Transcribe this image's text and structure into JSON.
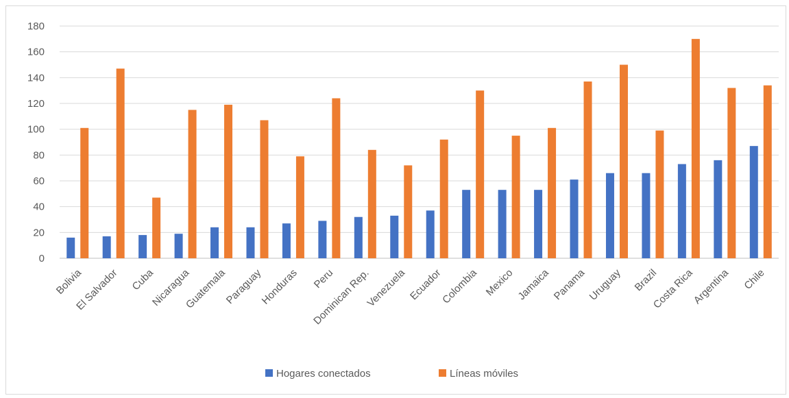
{
  "chart_data": {
    "type": "bar",
    "title": "",
    "xlabel": "",
    "ylabel": "",
    "ylim": [
      0,
      180
    ],
    "yticks": [
      0,
      20,
      40,
      60,
      80,
      100,
      120,
      140,
      160,
      180
    ],
    "grid": true,
    "legend_position": "bottom",
    "categories": [
      "Bolivia",
      "El Salvador",
      "Cuba",
      "Nicaragua",
      "Guatemala",
      "Paraguay",
      "Honduras",
      "Peru",
      "Dominican Rep.",
      "Venezuela",
      "Ecuador",
      "Colombia",
      "Mexico",
      "Jamaica",
      "Panama",
      "Uruguay",
      "Brazil",
      "Costa Rica",
      "Argentina",
      "Chile"
    ],
    "series": [
      {
        "name": "Hogares conectados",
        "color": "#4472c4",
        "values": [
          16,
          17,
          18,
          19,
          24,
          24,
          27,
          29,
          32,
          33,
          37,
          53,
          53,
          53,
          61,
          66,
          66,
          73,
          76,
          87
        ]
      },
      {
        "name": "Líneas móviles",
        "color": "#ed7d31",
        "values": [
          101,
          147,
          47,
          115,
          119,
          107,
          79,
          124,
          84,
          72,
          92,
          130,
          95,
          101,
          137,
          150,
          99,
          170,
          132,
          134
        ]
      }
    ]
  }
}
